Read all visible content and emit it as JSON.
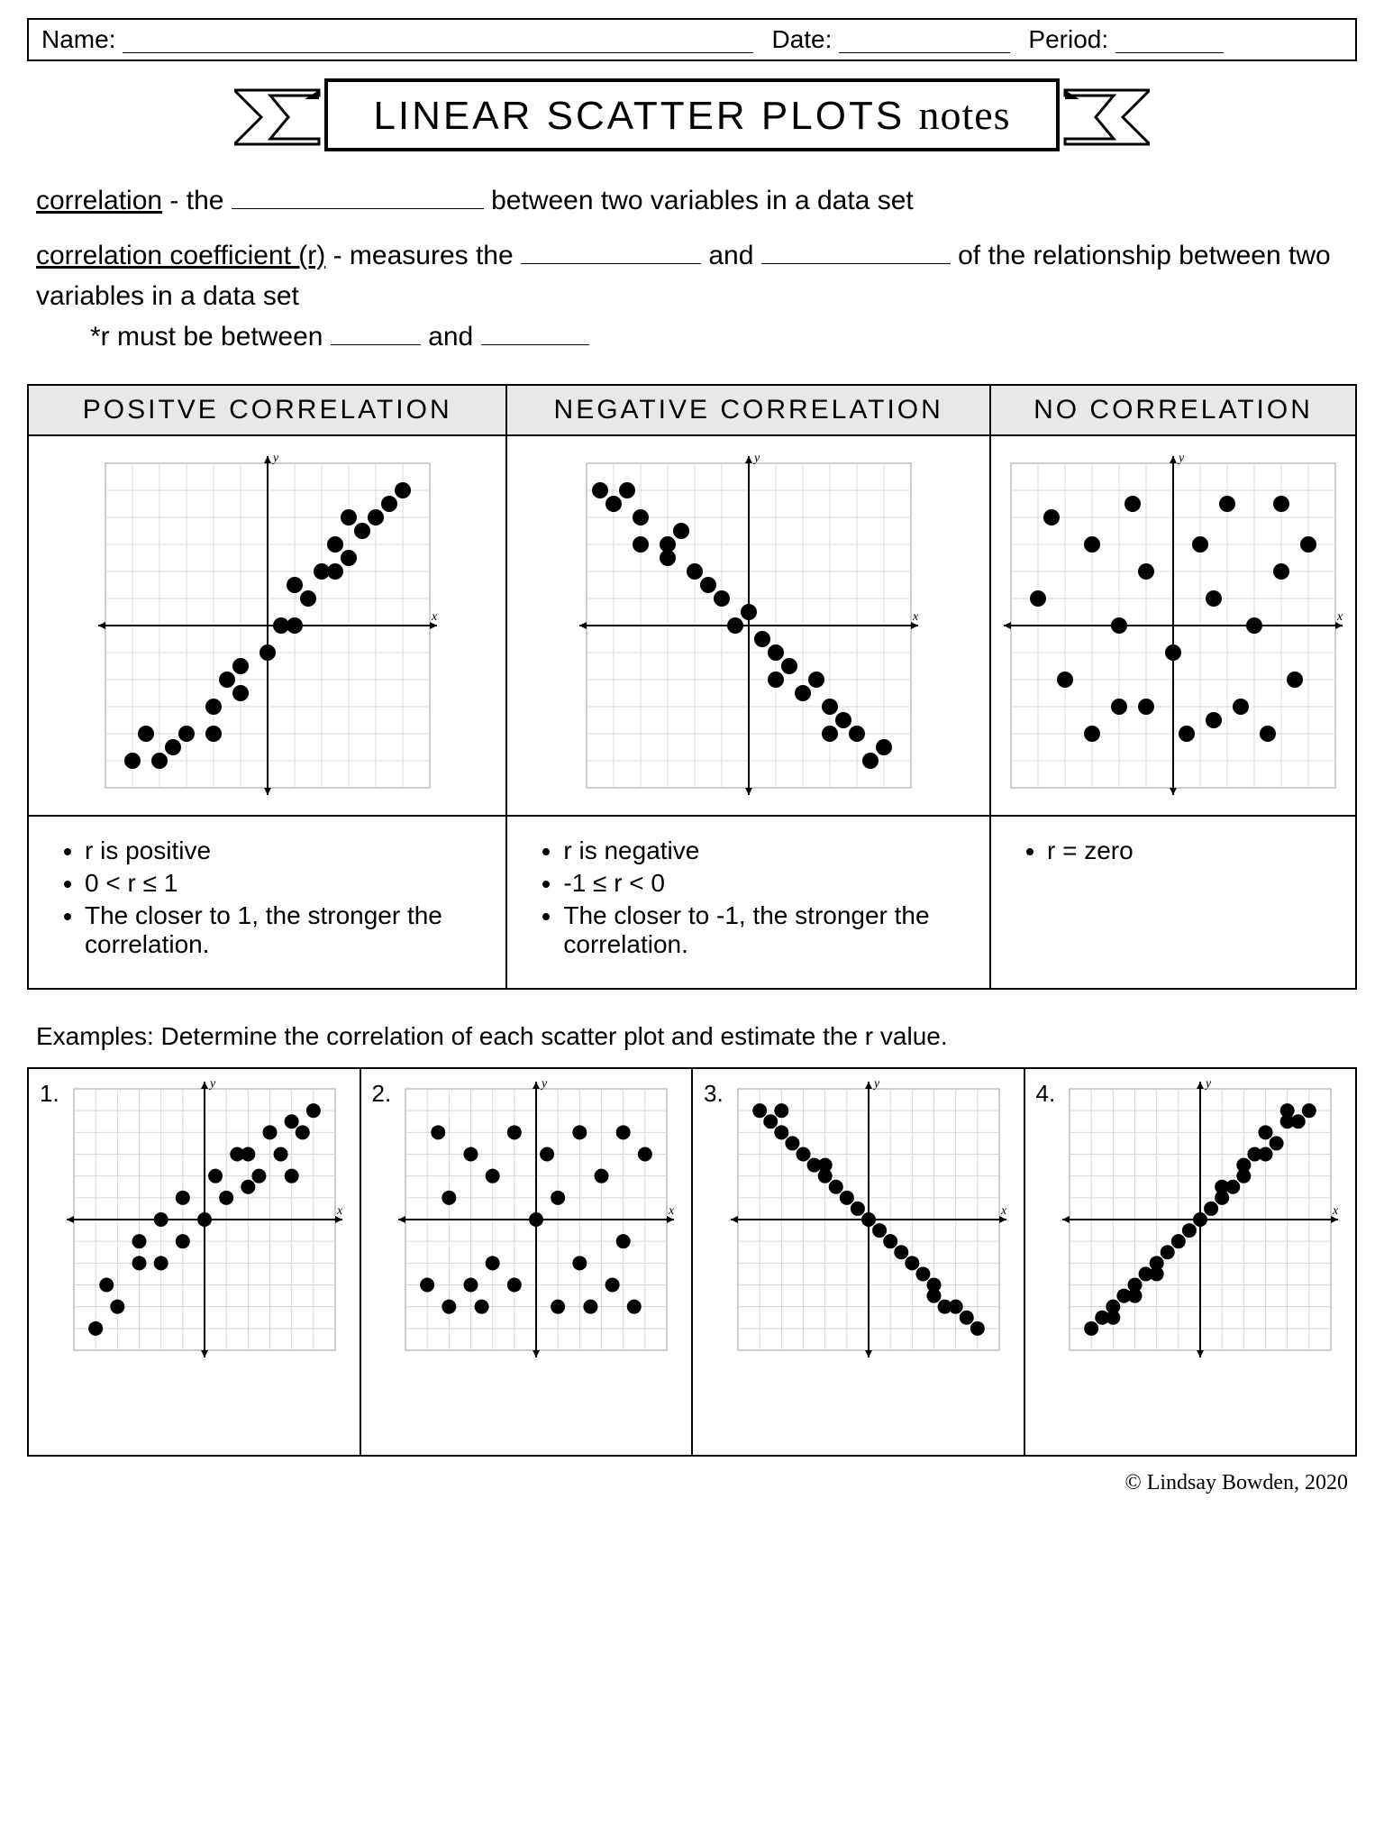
{
  "header": {
    "name_label": "Name:",
    "date_label": "Date:",
    "period_label": "Period:"
  },
  "title": {
    "main": "LINEAR SCATTER PLOTS",
    "script": "notes"
  },
  "definitions": {
    "line1_term": "correlation",
    "line1_rest_a": " - the ",
    "line1_blank_w": 280,
    "line1_rest_b": " between two variables in a data set",
    "line2_term": "correlation coefficient (r)",
    "line2_rest_a": " - measures the ",
    "line2_blank1_w": 200,
    "line2_mid": " and ",
    "line2_blank2_w": 210,
    "line2_rest_b": " of the relationship between two variables in a data set",
    "line3_prefix": "*r must be between ",
    "line3_blank1_w": 100,
    "line3_mid": " and ",
    "line3_blank2_w": 120
  },
  "correlation_table": {
    "headers": [
      "POSITVE CORRELATION",
      "NEGATIVE CORRELATION",
      "NO CORRELATION"
    ],
    "charts": [
      {
        "type": "scatter",
        "size": 360,
        "grid_n": 12,
        "grid_color": "#d8d8d8",
        "axis_color": "#000000",
        "point_color": "#000000",
        "point_r": 9,
        "xlabel": "x",
        "ylabel": "y",
        "points": [
          [
            -5,
            -5
          ],
          [
            -4.5,
            -4
          ],
          [
            -4,
            -5
          ],
          [
            -3.5,
            -4.5
          ],
          [
            -3,
            -4
          ],
          [
            -2,
            -4
          ],
          [
            -2,
            -3
          ],
          [
            -1.5,
            -2
          ],
          [
            -1,
            -2.5
          ],
          [
            -1,
            -1.5
          ],
          [
            0,
            -1
          ],
          [
            0.5,
            0
          ],
          [
            1,
            0
          ],
          [
            1,
            1.5
          ],
          [
            1.5,
            1
          ],
          [
            2,
            2
          ],
          [
            2.5,
            2
          ],
          [
            2.5,
            3
          ],
          [
            3,
            2.5
          ],
          [
            3.5,
            3.5
          ],
          [
            3,
            4
          ],
          [
            4,
            4
          ],
          [
            4.5,
            4.5
          ],
          [
            5,
            5
          ]
        ]
      },
      {
        "type": "scatter",
        "size": 360,
        "grid_n": 12,
        "grid_color": "#d8d8d8",
        "axis_color": "#000000",
        "point_color": "#000000",
        "point_r": 9,
        "xlabel": "x",
        "ylabel": "y",
        "points": [
          [
            -5.5,
            5
          ],
          [
            -5,
            4.5
          ],
          [
            -4.5,
            5
          ],
          [
            -4,
            4
          ],
          [
            -4,
            3
          ],
          [
            -3,
            3
          ],
          [
            -3,
            2.5
          ],
          [
            -2.5,
            3.5
          ],
          [
            -2,
            2
          ],
          [
            -1.5,
            1.5
          ],
          [
            -1,
            1
          ],
          [
            -0.5,
            0
          ],
          [
            0,
            0.5
          ],
          [
            0.5,
            -0.5
          ],
          [
            1,
            -1
          ],
          [
            1,
            -2
          ],
          [
            1.5,
            -1.5
          ],
          [
            2,
            -2.5
          ],
          [
            2.5,
            -2
          ],
          [
            3,
            -3
          ],
          [
            3,
            -4
          ],
          [
            3.5,
            -3.5
          ],
          [
            4,
            -4
          ],
          [
            4.5,
            -5
          ],
          [
            5,
            -4.5
          ]
        ]
      },
      {
        "type": "scatter",
        "size": 360,
        "grid_n": 12,
        "grid_color": "#d8d8d8",
        "axis_color": "#000000",
        "point_color": "#000000",
        "point_r": 9,
        "xlabel": "x",
        "ylabel": "y",
        "points": [
          [
            -5,
            1
          ],
          [
            -4.5,
            4
          ],
          [
            -4,
            -2
          ],
          [
            -3,
            3
          ],
          [
            -3,
            -4
          ],
          [
            -2,
            -3
          ],
          [
            -2,
            0
          ],
          [
            -1.5,
            4.5
          ],
          [
            -1,
            -3
          ],
          [
            -1,
            2
          ],
          [
            0,
            -1
          ],
          [
            0.5,
            -4
          ],
          [
            1,
            3
          ],
          [
            1.5,
            -3.5
          ],
          [
            1.5,
            1
          ],
          [
            2,
            4.5
          ],
          [
            2.5,
            -3
          ],
          [
            3,
            0
          ],
          [
            3.5,
            -4
          ],
          [
            4,
            2
          ],
          [
            4,
            4.5
          ],
          [
            4.5,
            -2
          ],
          [
            5,
            3
          ]
        ]
      }
    ],
    "notes": [
      [
        "r is positive",
        "0 < r ≤ 1",
        "The closer to 1, the stronger the correlation."
      ],
      [
        "r is negative",
        "-1 ≤ r < 0",
        "The closer to -1, the stronger the correlation."
      ],
      [
        "r = zero"
      ]
    ]
  },
  "examples": {
    "intro": "Examples: Determine the correlation of each scatter plot and estimate the r value.",
    "items": [
      {
        "num": "1.",
        "chart": {
          "type": "scatter",
          "size": 290,
          "grid_n": 12,
          "grid_color": "#d8d8d8",
          "axis_color": "#000000",
          "point_color": "#000000",
          "point_r": 8,
          "xlabel": "x",
          "ylabel": "y",
          "points": [
            [
              -5,
              -5
            ],
            [
              -4.5,
              -3
            ],
            [
              -4,
              -4
            ],
            [
              -3,
              -2
            ],
            [
              -3,
              -1
            ],
            [
              -2,
              -2
            ],
            [
              -2,
              0
            ],
            [
              -1,
              -1
            ],
            [
              -1,
              1
            ],
            [
              0,
              0
            ],
            [
              0.5,
              2
            ],
            [
              1,
              1
            ],
            [
              1.5,
              3
            ],
            [
              2,
              1.5
            ],
            [
              2,
              3
            ],
            [
              2.5,
              2
            ],
            [
              3,
              4
            ],
            [
              3.5,
              3
            ],
            [
              4,
              4.5
            ],
            [
              4,
              2
            ],
            [
              4.5,
              4
            ],
            [
              5,
              5
            ]
          ]
        }
      },
      {
        "num": "2.",
        "chart": {
          "type": "scatter",
          "size": 290,
          "grid_n": 12,
          "grid_color": "#d8d8d8",
          "axis_color": "#000000",
          "point_color": "#000000",
          "point_r": 8,
          "xlabel": "x",
          "ylabel": "y",
          "points": [
            [
              -5,
              -3
            ],
            [
              -4.5,
              4
            ],
            [
              -4,
              -4
            ],
            [
              -4,
              1
            ],
            [
              -3,
              -3
            ],
            [
              -3,
              3
            ],
            [
              -2.5,
              -4
            ],
            [
              -2,
              2
            ],
            [
              -2,
              -2
            ],
            [
              -1,
              4
            ],
            [
              -1,
              -3
            ],
            [
              0,
              0
            ],
            [
              0.5,
              3
            ],
            [
              1,
              -4
            ],
            [
              1,
              1
            ],
            [
              2,
              -2
            ],
            [
              2,
              4
            ],
            [
              2.5,
              -4
            ],
            [
              3,
              2
            ],
            [
              3.5,
              -3
            ],
            [
              4,
              4
            ],
            [
              4,
              -1
            ],
            [
              4.5,
              -4
            ],
            [
              5,
              3
            ]
          ]
        }
      },
      {
        "num": "3.",
        "chart": {
          "type": "scatter",
          "size": 290,
          "grid_n": 12,
          "grid_color": "#d8d8d8",
          "axis_color": "#000000",
          "point_color": "#000000",
          "point_r": 8,
          "xlabel": "x",
          "ylabel": "y",
          "points": [
            [
              -5,
              5
            ],
            [
              -4.5,
              4.5
            ],
            [
              -4,
              5
            ],
            [
              -4,
              4
            ],
            [
              -3.5,
              3.5
            ],
            [
              -3,
              3
            ],
            [
              -2.5,
              2.5
            ],
            [
              -2,
              2.5
            ],
            [
              -2,
              2
            ],
            [
              -1.5,
              1.5
            ],
            [
              -1,
              1
            ],
            [
              -0.5,
              0.5
            ],
            [
              0,
              0
            ],
            [
              0.5,
              -0.5
            ],
            [
              1,
              -1
            ],
            [
              1.5,
              -1.5
            ],
            [
              2,
              -2
            ],
            [
              2.5,
              -2.5
            ],
            [
              3,
              -3
            ],
            [
              3,
              -3.5
            ],
            [
              3.5,
              -4
            ],
            [
              4,
              -4
            ],
            [
              4.5,
              -4.5
            ],
            [
              5,
              -5
            ]
          ]
        }
      },
      {
        "num": "4.",
        "chart": {
          "type": "scatter",
          "size": 290,
          "grid_n": 12,
          "grid_color": "#d8d8d8",
          "axis_color": "#000000",
          "point_color": "#000000",
          "point_r": 8,
          "xlabel": "x",
          "ylabel": "y",
          "points": [
            [
              -5,
              -5
            ],
            [
              -4.5,
              -4.5
            ],
            [
              -4,
              -4.5
            ],
            [
              -4,
              -4
            ],
            [
              -3.5,
              -3.5
            ],
            [
              -3,
              -3
            ],
            [
              -3,
              -3.5
            ],
            [
              -2.5,
              -2.5
            ],
            [
              -2,
              -2.5
            ],
            [
              -2,
              -2
            ],
            [
              -1.5,
              -1.5
            ],
            [
              -1,
              -1
            ],
            [
              -0.5,
              -0.5
            ],
            [
              0,
              0
            ],
            [
              0.5,
              0.5
            ],
            [
              1,
              1
            ],
            [
              1,
              1.5
            ],
            [
              1.5,
              1.5
            ],
            [
              2,
              2
            ],
            [
              2,
              2.5
            ],
            [
              2.5,
              3
            ],
            [
              3,
              3
            ],
            [
              3,
              4
            ],
            [
              3.5,
              3.5
            ],
            [
              4,
              4.5
            ],
            [
              4,
              5
            ],
            [
              4.5,
              4.5
            ],
            [
              5,
              5
            ]
          ]
        }
      }
    ]
  },
  "footer": "© Lindsay Bowden, 2020"
}
